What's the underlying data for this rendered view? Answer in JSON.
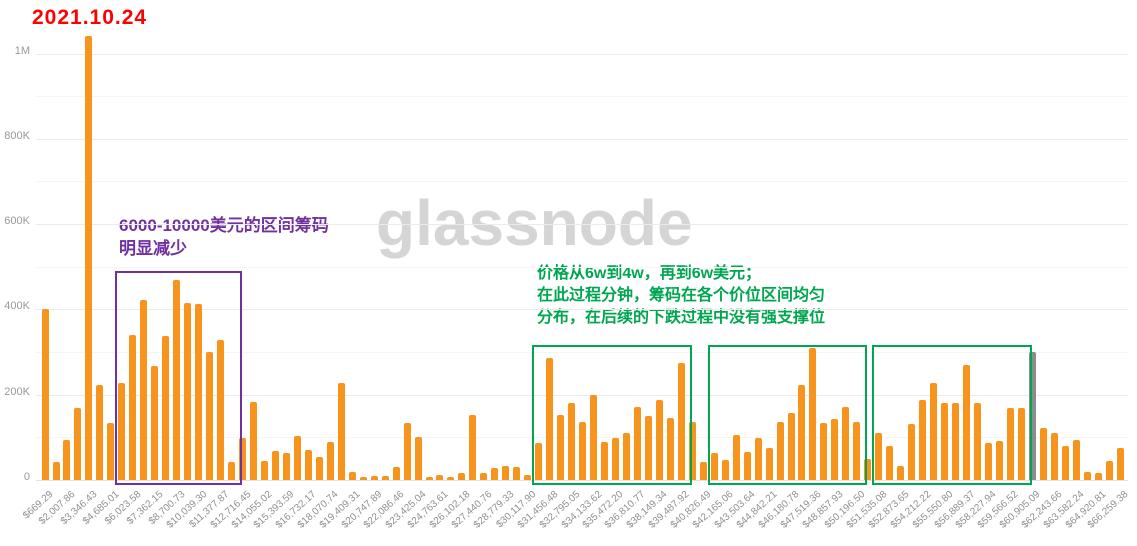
{
  "annotations": {
    "date": "2021.10.24",
    "purple_note_line1": "6000-10000美元的区间筹码",
    "purple_note_line2": "明显减少",
    "green_note_line1": "价格从6w到4w，再到6w美元；",
    "green_note_line2": "在此过程分钟，筹码在各个价位区间均匀",
    "green_note_line3": "分布，在后续的下跌过程中没有强支撑位"
  },
  "watermark": "glassnode",
  "colors": {
    "bar_orange": "#F7941E",
    "bar_gray": "#8C8C8C",
    "box_purple": "#7030A0",
    "box_green": "#00A651",
    "note_purple": "#7030A0",
    "note_green": "#00A64F",
    "date_red": "#FF0000",
    "watermark_gray": "#D5D5D5",
    "axis_text": "#999999",
    "grid_major": "#ebebeb",
    "grid_minor": "#f5f5f5"
  },
  "chart_data": {
    "type": "bar",
    "title": "",
    "xlabel": "",
    "ylabel": "",
    "grid": true,
    "ylim": [
      0,
      1050000
    ],
    "y_ticks": [
      {
        "label": "0",
        "value": 0
      },
      {
        "label": "200K",
        "value": 200000
      },
      {
        "label": "400K",
        "value": 400000
      },
      {
        "label": "600K",
        "value": 600000
      },
      {
        "label": "800K",
        "value": 800000
      },
      {
        "label": "1M",
        "value": 1000000
      }
    ],
    "x_tick_labels": [
      "$669.29",
      "$2,007.86",
      "$3,346.43",
      "$4,685.01",
      "$6,023.58",
      "$7,362.15",
      "$8,700.73",
      "$10,039.30",
      "$11,377.87",
      "$12,716.45",
      "$14,055.02",
      "$15,393.59",
      "$16,732.17",
      "$18,070.74",
      "$19,409.31",
      "$20,747.89",
      "$22,086.46",
      "$23,425.04",
      "$24,763.61",
      "$26,102.18",
      "$27,440.76",
      "$28,779.33",
      "$30,117.90",
      "$31,456.48",
      "$32,795.05",
      "$34,133.62",
      "$35,472.20",
      "$36,810.77",
      "$38,149.34",
      "$39,487.92",
      "$40,826.49",
      "$42,165.06",
      "$43,503.64",
      "$44,842.21",
      "$46,180.78",
      "$47,519.36",
      "$48,857.93",
      "$50,196.50",
      "$51,535.08",
      "$52,873.65",
      "$54,212.22",
      "$55,550.80",
      "$56,889.37",
      "$58,227.94",
      "$59,566.52",
      "$60,905.09",
      "$62,243.66",
      "$63,582.24",
      "$64,920.81",
      "$66,259.38"
    ],
    "values": [
      400000,
      42000,
      94000,
      170000,
      1040000,
      222000,
      134000,
      228000,
      340000,
      422000,
      267000,
      338000,
      468000,
      416000,
      413000,
      301000,
      329000,
      43000,
      99000,
      184000,
      45000,
      68000,
      64000,
      103000,
      70000,
      55000,
      90000,
      228000,
      20000,
      7000,
      9000,
      9000,
      31000,
      134000,
      100000,
      7000,
      12000,
      6000,
      16000,
      153000,
      16000,
      28000,
      34000,
      30000,
      12000,
      88000,
      286000,
      153000,
      180000,
      137000,
      200000,
      90000,
      98000,
      110000,
      172000,
      150000,
      188000,
      145000,
      274000,
      137000,
      43000,
      64000,
      47000,
      106000,
      66000,
      98000,
      76000,
      137000,
      157000,
      223000,
      310000,
      133000,
      142000,
      172000,
      135000,
      49000,
      111000,
      80000,
      33000,
      131000,
      188000,
      227000,
      181000,
      180000,
      270000,
      180000,
      88000,
      92000,
      170000,
      168000,
      301000,
      121000,
      111000,
      80000,
      94000,
      20000,
      17000,
      45000,
      74000
    ],
    "gray_bar_index": 90,
    "highlight_boxes": [
      {
        "color_name": "purple",
        "bar_start": 7,
        "bar_end": 17,
        "top_value": 490000
      },
      {
        "color_name": "green",
        "bar_start": 45,
        "bar_end": 58,
        "top_value": 317000
      },
      {
        "color_name": "green",
        "bar_start": 61,
        "bar_end": 74,
        "top_value": 317000
      },
      {
        "color_name": "green",
        "bar_start": 76,
        "bar_end": 89,
        "top_value": 317000
      }
    ]
  }
}
